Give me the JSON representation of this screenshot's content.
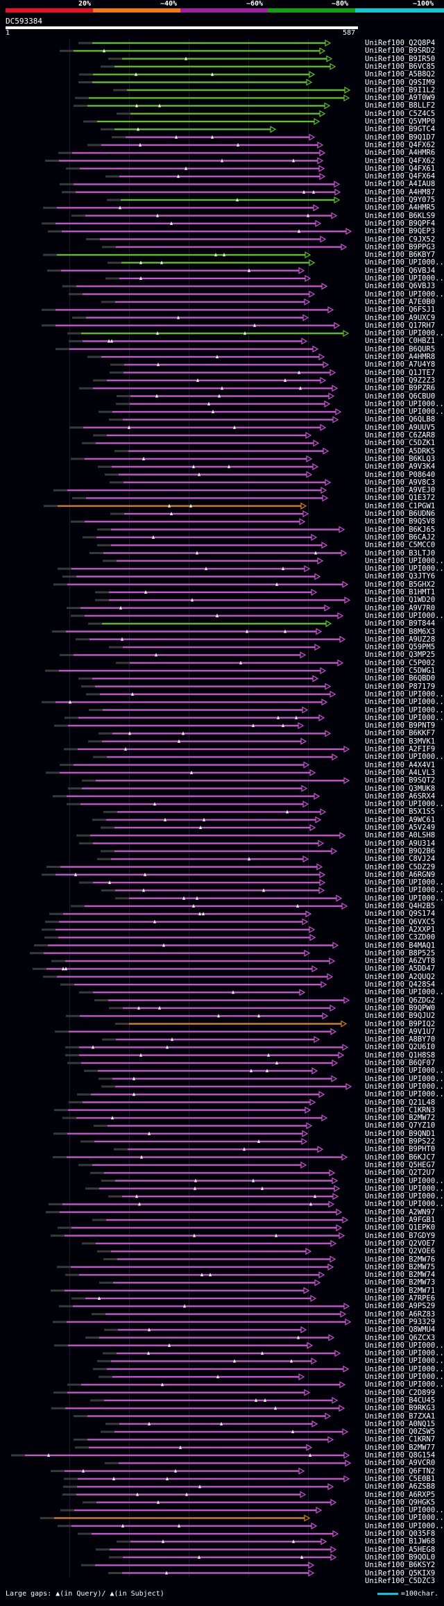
{
  "query_id": "DC593384",
  "ruler": {
    "start": "1",
    "end": "587"
  },
  "legend": [
    {
      "label": "20%",
      "color": "#e8102a"
    },
    {
      "label": "~40%",
      "color": "#f07a18"
    },
    {
      "label": "~60%",
      "color": "#a020a0"
    },
    {
      "label": "~80%",
      "color": "#10a010"
    },
    {
      "label": "~100%",
      "color": "#10c8d0"
    }
  ],
  "colors": {
    "background": "#000008",
    "identity_green": "#5ac818",
    "identity_magenta": "#d050d8",
    "identity_orange": "#e08010",
    "identity_gray": "#3a3a3a",
    "scale_bar": "#00c8d8"
  },
  "hits": [
    "UniRef100_Q2Q8P4",
    "UniRef100_B9SRD2",
    "UniRef100_B9IR50",
    "UniRef100_B6VC85",
    "UniRef100_A5B8Q2",
    "UniRef100_Q9SIM9",
    "UniRef100_B9I1L2",
    "UniRef100_A9T0W9",
    "UniRef100_B8LLF2",
    "UniRef100_C5Z4C5",
    "UniRef100_Q5VMP0",
    "UniRef100_B9GTC4",
    "UniRef100_B9Q1D7",
    "UniRef100_Q4FX62",
    "UniRef100_A4HMR6",
    "UniRef100_Q4FX62",
    "UniRef100_Q4FX61",
    "UniRef100_Q4FX64",
    "UniRef100_A4IAU8",
    "UniRef100_A4HM87",
    "UniRef100_Q9Y075",
    "UniRef100_A4HMR5",
    "UniRef100_B6KLS9",
    "UniRef100_B9QPF4",
    "UniRef100_B9QEP3",
    "UniRef100_C9JX52",
    "UniRef100_B9PPG3",
    "UniRef100_B6KBY7",
    "UniRef100_UPI000...",
    "UniRef100_Q6VBJ4",
    "UniRef100_UPI000...",
    "UniRef100_Q6VBJ3",
    "UniRef100_UPI000...",
    "UniRef100_A7E0B0",
    "UniRef100_Q6FSJ1",
    "UniRef100_A9UXC9",
    "UniRef100_Q17RH7",
    "UniRef100_UPI000...",
    "UniRef100_C0HBZ1",
    "UniRef100_B6QUR5",
    "UniRef100_A4HMR8",
    "UniRef100_A7U4Y8",
    "UniRef100_Q1JTE7",
    "UniRef100_Q9Z2Z3",
    "UniRef100_B9PZR6",
    "UniRef100_Q6CBU0",
    "UniRef100_UPI000...",
    "UniRef100_UPI000...",
    "UniRef100_Q6QLB8",
    "UniRef100_A9UUV5",
    "UniRef100_C6ZAR8",
    "UniRef100_C5DZK1",
    "UniRef100_A5DRK5",
    "UniRef100_B6KLQ3",
    "UniRef100_A9V3K4",
    "UniRef100_P08640",
    "UniRef100_A9V8C3",
    "UniRef100_A9VEJ0",
    "UniRef100_Q1E372",
    "UniRef100_C1PGW1",
    "UniRef100_B6UDN6",
    "UniRef100_B9QSV8",
    "UniRef100_B6KJ65",
    "UniRef100_B6CAJ2",
    "UniRef100_C5MCC0",
    "UniRef100_B3LTJ0",
    "UniRef100_UPI000...",
    "UniRef100_UPI000...",
    "UniRef100_Q3JTY6",
    "UniRef100_B5GHX2",
    "UniRef100_B1HMT1",
    "UniRef100_Q1WD20",
    "UniRef100_A9V7R0",
    "UniRef100_UPI000...",
    "UniRef100_B9T844",
    "UniRef100_B8M6X3",
    "UniRef100_A9UZ28",
    "UniRef100_Q59PM5",
    "UniRef100_Q3MP25",
    "UniRef100_C5P002",
    "UniRef100_C5DWG1",
    "UniRef100_B6QBD0",
    "UniRef100_P87179",
    "UniRef100_UPI000...",
    "UniRef100_UPI000...",
    "UniRef100_UPI000...",
    "UniRef100_UPI000...",
    "UniRef100_B9PNT9",
    "UniRef100_B6KKF7",
    "UniRef100_B3MVK1",
    "UniRef100_A2FIF9",
    "UniRef100_UPI000...",
    "UniRef100_A4X4V1",
    "UniRef100_A4LVL3",
    "UniRef100_B9SQT2",
    "UniRef100_Q3MUK8",
    "UniRef100_A6SRX4",
    "UniRef100_UPI000...",
    "UniRef100_B5X1S5",
    "UniRef100_A9WC61",
    "UniRef100_A5V249",
    "UniRef100_A0LSH8",
    "UniRef100_A9U314",
    "UniRef100_B9Q2B6",
    "UniRef100_C8VJ24",
    "UniRef100_C5DZ29",
    "UniRef100_A6RGN9",
    "UniRef100_UPI000...",
    "UniRef100_UPI000...",
    "UniRef100_UPI000...",
    "UniRef100_Q4H2B5",
    "UniRef100_Q9S174",
    "UniRef100_Q6VXC5",
    "UniRef100_A2XXP1",
    "UniRef100_C3ZD00",
    "UniRef100_B4MAQ1",
    "UniRef100_B8P525",
    "UniRef100_A6ZVT8",
    "UniRef100_A5DD47",
    "UniRef100_A2QUQ2",
    "UniRef100_Q428S4",
    "UniRef100_UPI000...",
    "UniRef100_Q6ZDG2",
    "UniRef100_B9QPW0",
    "UniRef100_B9QJU2",
    "UniRef100_B9PIQ2",
    "UniRef100_A9V1U7",
    "UniRef100_A8BY70",
    "UniRef100_Q2U6I0",
    "UniRef100_Q1H8S8",
    "UniRef100_B6QF07",
    "UniRef100_UPI000...",
    "UniRef100_UPI000...",
    "UniRef100_UPI000...",
    "UniRef100_UPI000...",
    "UniRef100_Q21L48",
    "UniRef100_C1KRN3",
    "UniRef100_B2MW72",
    "UniRef100_Q7YZ10",
    "UniRef100_B9QND1",
    "UniRef100_B9PS22",
    "UniRef100_B9PHT0",
    "UniRef100_B6KJC7",
    "UniRef100_Q5HEG7",
    "UniRef100_Q2T2U7",
    "UniRef100_UPI000...",
    "UniRef100_UPI000...",
    "UniRef100_UPI000...",
    "UniRef100_UPI000...",
    "UniRef100_A2WN97",
    "UniRef100_A9FGB1",
    "UniRef100_Q1EPK0",
    "UniRef100_B7GDY9",
    "UniRef100_Q2VOE7",
    "UniRef100_Q2VOE6",
    "UniRef100_B2MW76",
    "UniRef100_B2MW75",
    "UniRef100_B2MW74",
    "UniRef100_B2MW73",
    "UniRef100_B2MW71",
    "UniRef100_A7RPE6",
    "UniRef100_A9PS29",
    "UniRef100_A6RZ83",
    "UniRef100_P93329",
    "UniRef100_Q8WMU4",
    "UniRef100_Q6ZCX3",
    "UniRef100_UPI000...",
    "UniRef100_UPI000...",
    "UniRef100_UPI000...",
    "UniRef100_UPI000...",
    "UniRef100_UPI000...",
    "UniRef100_UPI000...",
    "UniRef100_C2D899",
    "UniRef100_B4CU45",
    "UniRef100_B9RKG3",
    "UniRef100_B7ZXA1",
    "UniRef100_A0NQ15",
    "UniRef100_Q0ZSW5",
    "UniRef100_C1KRN7",
    "UniRef100_B2MW77",
    "UniRef100_Q8G154",
    "UniRef100_A9VCR0",
    "UniRef100_Q6FTN2",
    "UniRef100_C5E0B1",
    "UniRef100_A6ZSB8",
    "UniRef100_A6RXP5",
    "UniRef100_Q9HGK5",
    "UniRef100_UPI000...",
    "UniRef100_UPI000...",
    "UniRef100_UPI000...",
    "UniRef100_Q035F8",
    "UniRef100_B1JW68",
    "UniRef100_A5HEG8",
    "UniRef100_B9QOL0",
    "UniRef100_B6KSY2",
    "UniRef100_Q5KIX9",
    "UniRef100_C5DZC3"
  ],
  "footer": {
    "gaps_text": "Large gaps: ▲(in Query)/ ▲(in Subject)",
    "scale_text": "=100char."
  }
}
